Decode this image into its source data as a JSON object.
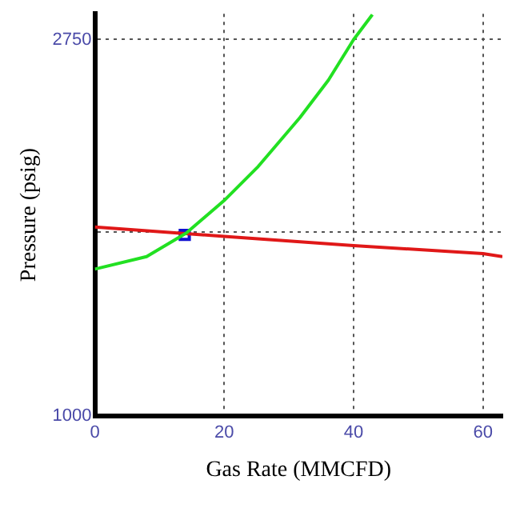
{
  "chart_data": {
    "type": "line",
    "xlabel": "Gas Rate (MMCFD)",
    "ylabel": "Pressure (psig)",
    "xlim": [
      0,
      63
    ],
    "xticks": [
      0,
      20,
      40,
      60
    ],
    "ylim": [
      1000,
      2870
    ],
    "yticks": [
      1000,
      {
        "value": 1857,
        "label": null
      },
      2750
    ],
    "grid": true,
    "line_style": "solid",
    "marker": "none",
    "series": [
      {
        "type": "line",
        "color": "#22e022",
        "x": [
          0,
          8,
          14.1,
          20,
          25.1,
          31.7,
          36.1,
          40,
          42.9
        ],
        "values": [
          1683,
          1741,
          1850,
          2002,
          2155,
          2387,
          2561,
          2750,
          2866
        ]
      },
      {
        "type": "line",
        "color": "#e01818",
        "x": [
          0,
          20,
          40,
          60,
          63
        ],
        "values": [
          1879,
          1835,
          1792,
          1755,
          1741
        ]
      },
      {
        "type": "scatter",
        "color": "#1010d0",
        "marker": "square",
        "x": [
          13.9
        ],
        "values": [
          1842
        ]
      }
    ]
  }
}
